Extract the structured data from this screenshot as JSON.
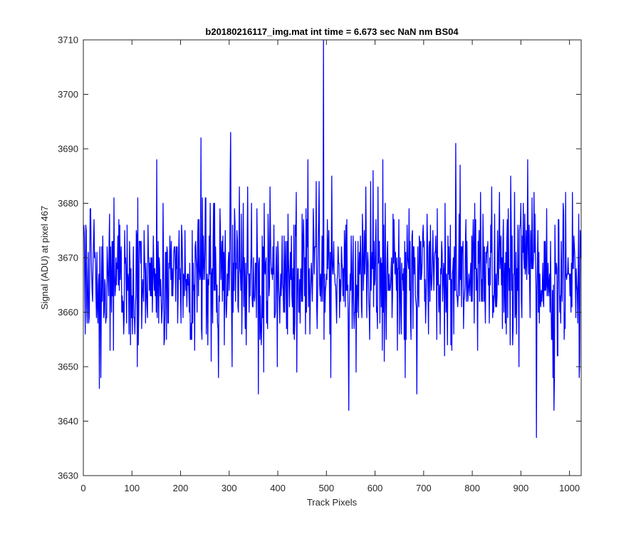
{
  "chart_data": {
    "type": "line",
    "title": "b20180216117_img.mat int time = 6.673 sec  NaN nm BS04",
    "xlabel": "Track Pixels",
    "ylabel": "Signal (ADU) at pixel 467",
    "xlim": [
      0,
      1024
    ],
    "ylim": [
      3630,
      3710
    ],
    "xticks": [
      0,
      100,
      200,
      300,
      400,
      500,
      600,
      700,
      800,
      900,
      1000
    ],
    "yticks": [
      3630,
      3640,
      3650,
      3660,
      3670,
      3680,
      3690,
      3700,
      3710
    ],
    "grid": false,
    "line_color": "#0000ff",
    "series": [
      {
        "name": "",
        "noise_description": "1024-point noisy trace centred near 3667 ADU, roughly ±9 ADU spread",
        "x_start": 1,
        "x_end": 1024,
        "y_mean": 3667,
        "y_std": 9,
        "key_points": [
          {
            "x": 33,
            "y": 3646
          },
          {
            "x": 242,
            "y": 3692
          },
          {
            "x": 303,
            "y": 3693
          },
          {
            "x": 360,
            "y": 3645
          },
          {
            "x": 494,
            "y": 3710
          },
          {
            "x": 546,
            "y": 3642
          },
          {
            "x": 686,
            "y": 3645
          },
          {
            "x": 766,
            "y": 3691
          },
          {
            "x": 914,
            "y": 3688
          },
          {
            "x": 932,
            "y": 3637
          },
          {
            "x": 968,
            "y": 3642
          },
          {
            "x": 1021,
            "y": 3651
          }
        ]
      }
    ]
  }
}
